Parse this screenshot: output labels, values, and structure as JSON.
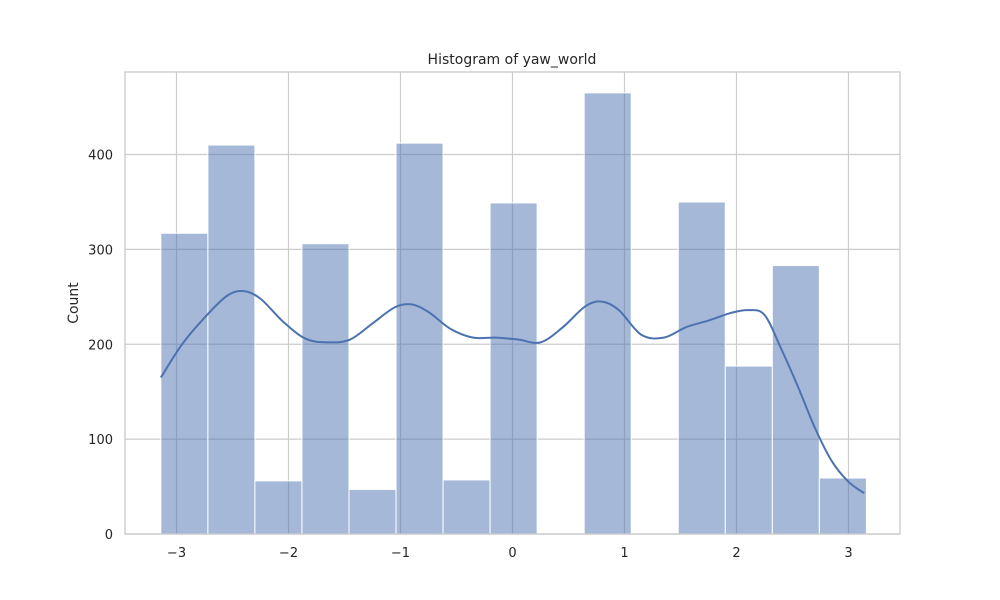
{
  "chart_data": {
    "type": "bar",
    "title": "Histogram of yaw_world",
    "xlabel": "",
    "ylabel": "Count",
    "xlim": [
      -3.46,
      3.46
    ],
    "ylim": [
      0,
      487
    ],
    "xticks": [
      -3,
      -2,
      -1,
      0,
      1,
      2,
      3
    ],
    "xtick_labels": [
      "−3",
      "−2",
      "−1",
      "0",
      "1",
      "2",
      "3"
    ],
    "yticks": [
      0,
      100,
      200,
      300,
      400
    ],
    "ytick_labels": [
      "0",
      "100",
      "200",
      "300",
      "400"
    ],
    "grid": true,
    "legend": "none",
    "bar_color": "#4c72b0",
    "bar_opacity": 0.5,
    "kde_color": "#4c72b0",
    "bins": [
      {
        "x0": -3.14,
        "x1": -2.72,
        "count": 317
      },
      {
        "x0": -2.72,
        "x1": -2.3,
        "count": 410
      },
      {
        "x0": -2.3,
        "x1": -1.88,
        "count": 56
      },
      {
        "x0": -1.88,
        "x1": -1.46,
        "count": 306
      },
      {
        "x0": -1.46,
        "x1": -1.04,
        "count": 47
      },
      {
        "x0": -1.04,
        "x1": -0.62,
        "count": 412
      },
      {
        "x0": -0.62,
        "x1": -0.2,
        "count": 57
      },
      {
        "x0": -0.2,
        "x1": 0.22,
        "count": 349
      },
      {
        "x0": 0.22,
        "x1": 0.64,
        "count": 0
      },
      {
        "x0": 0.64,
        "x1": 1.06,
        "count": 465
      },
      {
        "x0": 1.06,
        "x1": 1.48,
        "count": 0
      },
      {
        "x0": 1.48,
        "x1": 1.9,
        "count": 350
      },
      {
        "x0": 1.9,
        "x1": 2.32,
        "count": 177
      },
      {
        "x0": 2.32,
        "x1": 2.74,
        "count": 283
      },
      {
        "x0": 2.74,
        "x1": 3.16,
        "count": 59
      }
    ],
    "kde": {
      "x": [
        -3.14,
        -2.95,
        -2.75,
        -2.55,
        -2.4,
        -2.25,
        -2.05,
        -1.85,
        -1.65,
        -1.45,
        -1.25,
        -1.05,
        -0.9,
        -0.75,
        -0.55,
        -0.35,
        -0.15,
        0.05,
        0.25,
        0.45,
        0.65,
        0.8,
        0.95,
        1.15,
        1.35,
        1.55,
        1.75,
        1.95,
        2.1,
        2.25,
        2.4,
        2.55,
        2.7,
        2.85,
        3.0,
        3.14
      ],
      "y": [
        165,
        200,
        228,
        251,
        256,
        248,
        224,
        206,
        202,
        205,
        222,
        239,
        242,
        234,
        216,
        207,
        207,
        205,
        202,
        218,
        240,
        245,
        236,
        210,
        207,
        218,
        225,
        233,
        236,
        231,
        195,
        155,
        112,
        77,
        55,
        43
      ]
    }
  }
}
